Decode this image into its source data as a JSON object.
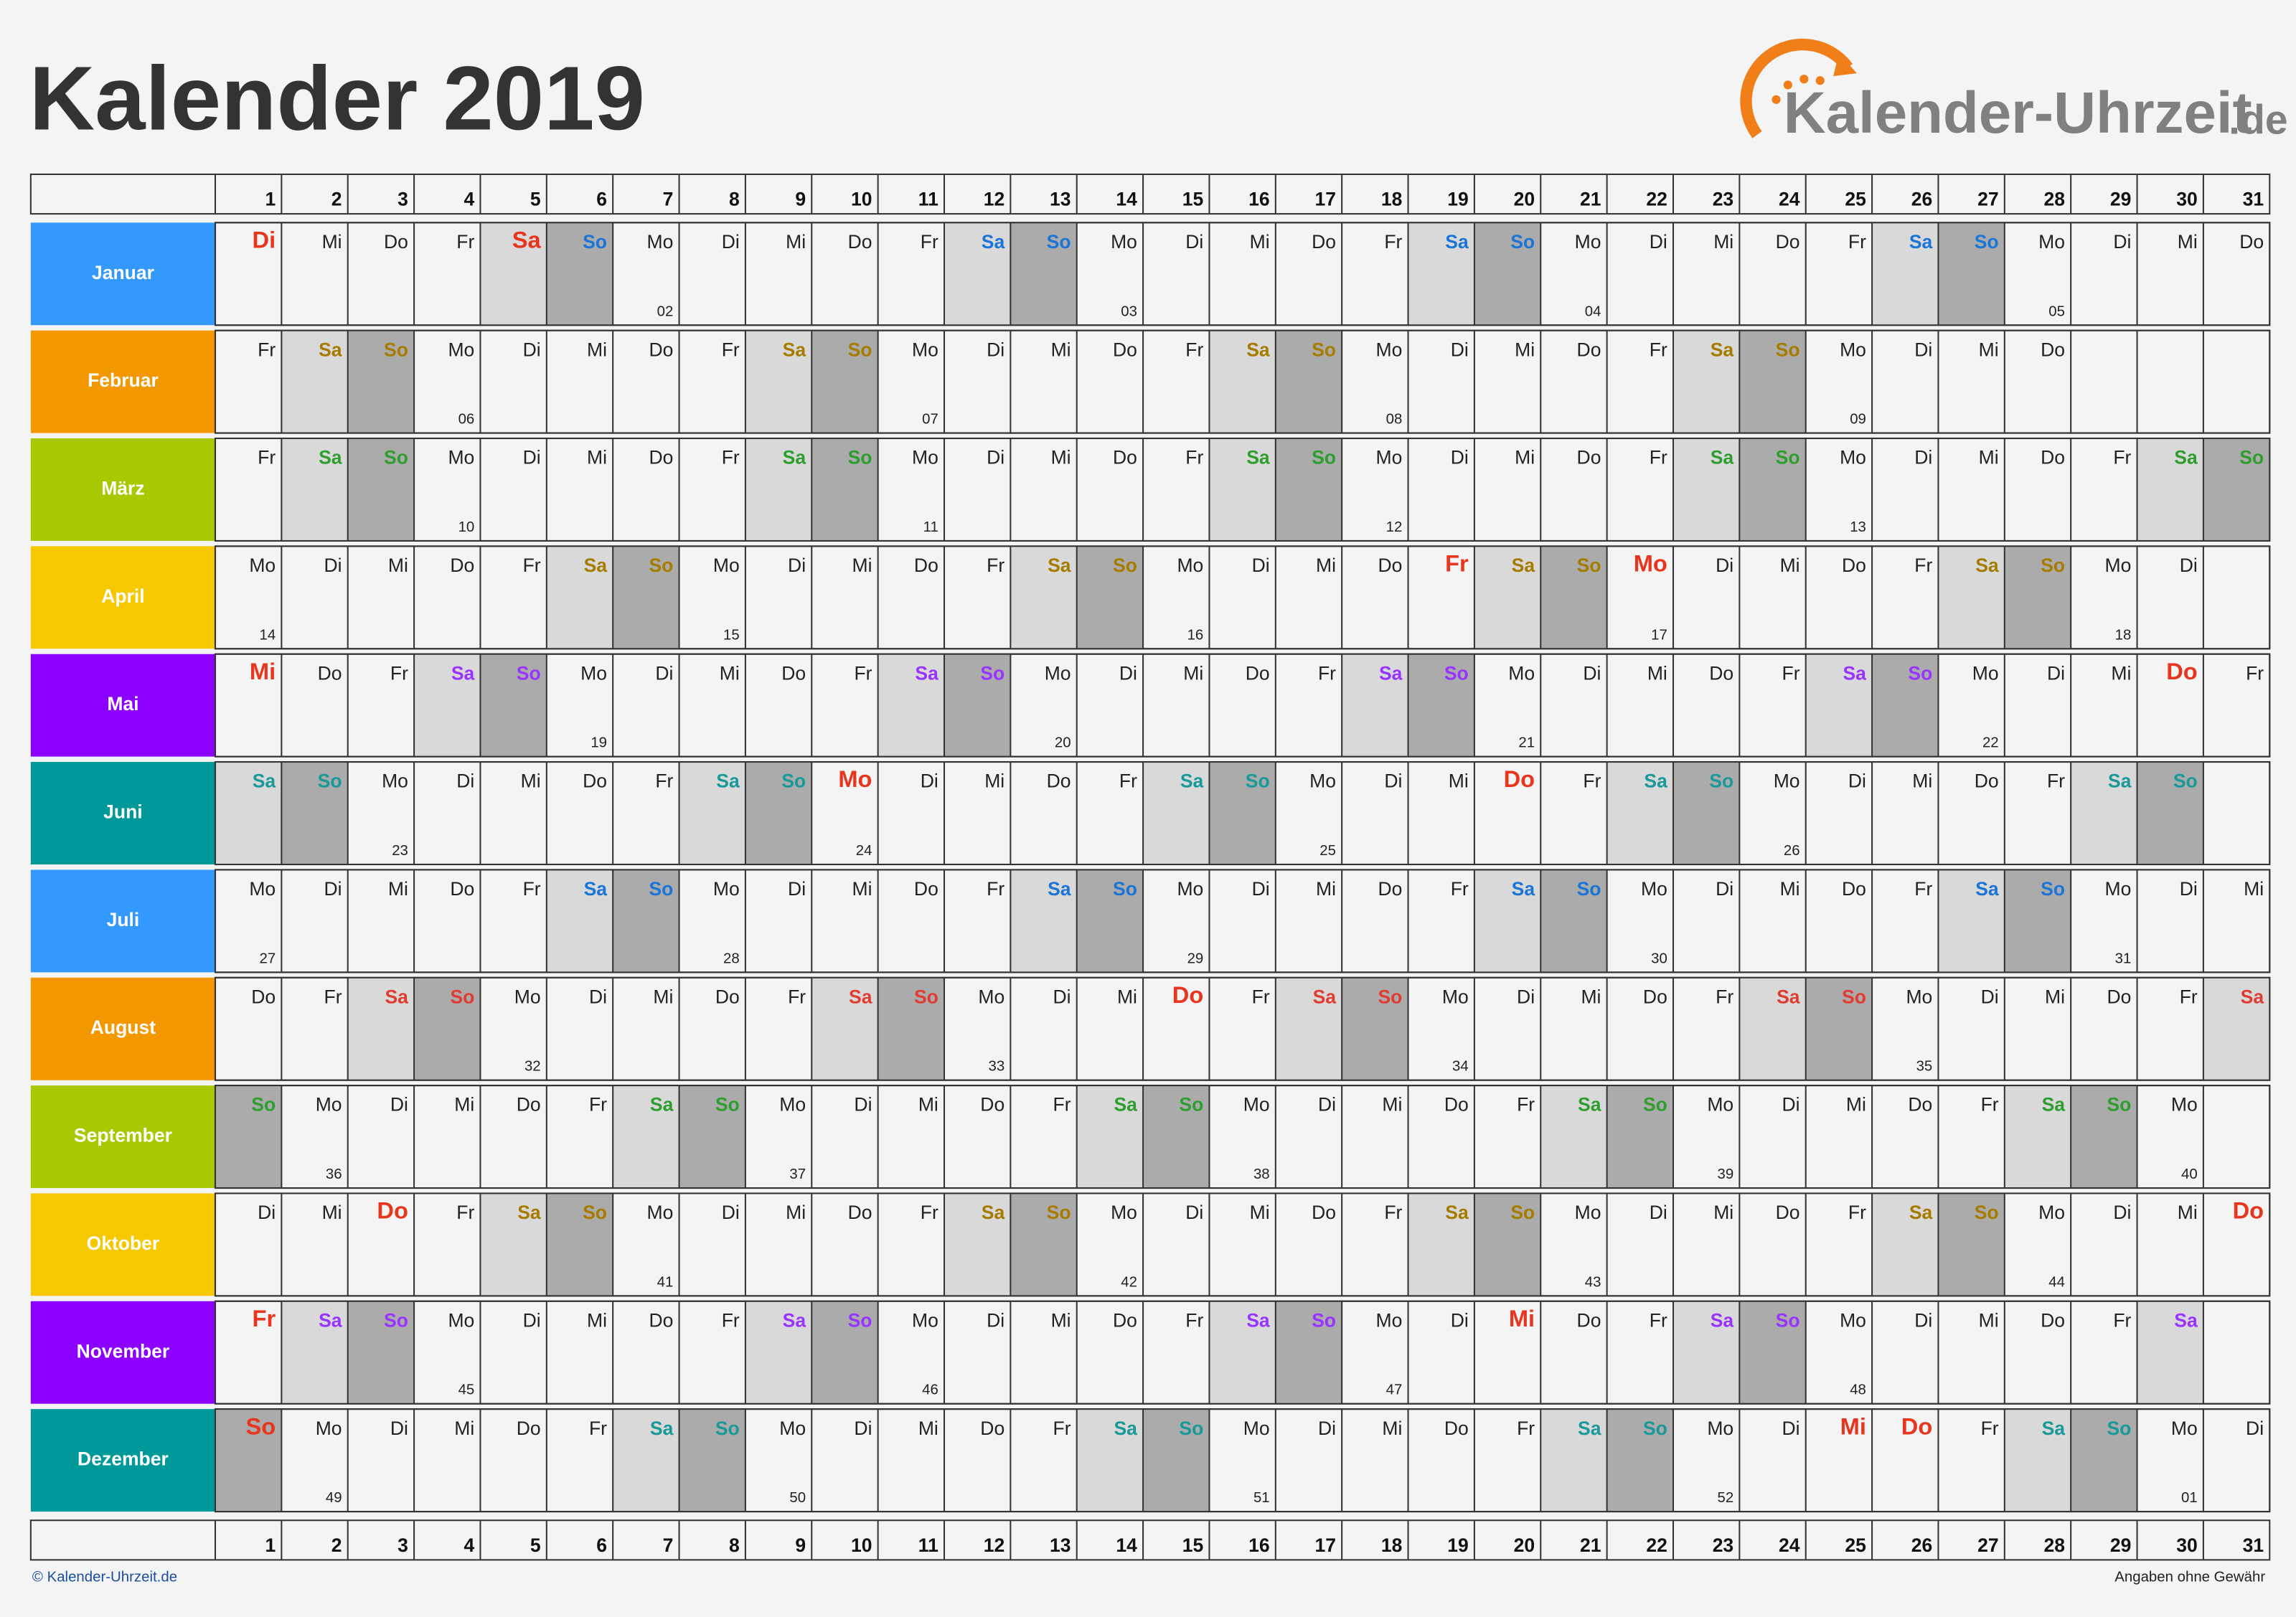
{
  "title": "Kalender 2019",
  "logo": {
    "name": "Kalender-Uhrzeit",
    "tld": ".de"
  },
  "footer": {
    "left": "© Kalender-Uhrzeit.de",
    "right": "Angaben ohne Gewähr"
  },
  "holiday_color": "#e8351e",
  "saturday_bg": "#d9d9d9",
  "sunday_bg": "#ababab",
  "days": [
    1,
    2,
    3,
    4,
    5,
    6,
    7,
    8,
    9,
    10,
    11,
    12,
    13,
    14,
    15,
    16,
    17,
    18,
    19,
    20,
    21,
    22,
    23,
    24,
    25,
    26,
    27,
    28,
    29,
    30,
    31
  ],
  "months": [
    {
      "name": "Januar",
      "color": "#3399ff",
      "weekend_color": "#1a75d6",
      "holidays": [
        1,
        5
      ],
      "days": [
        "Di",
        "Mi",
        "Do",
        "Fr",
        "Sa",
        "So",
        "Mo",
        "Di",
        "Mi",
        "Do",
        "Fr",
        "Sa",
        "So",
        "Mo",
        "Di",
        "Mi",
        "Do",
        "Fr",
        "Sa",
        "So",
        "Mo",
        "Di",
        "Mi",
        "Do",
        "Fr",
        "Sa",
        "So",
        "Mo",
        "Di",
        "Mi",
        "Do"
      ],
      "weeks": [
        "02",
        "03",
        "04",
        "05"
      ]
    },
    {
      "name": "Februar",
      "color": "#f39800",
      "weekend_color": "#a67c00",
      "holidays": [],
      "days": [
        "Fr",
        "Sa",
        "So",
        "Mo",
        "Di",
        "Mi",
        "Do",
        "Fr",
        "Sa",
        "So",
        "Mo",
        "Di",
        "Mi",
        "Do",
        "Fr",
        "Sa",
        "So",
        "Mo",
        "Di",
        "Mi",
        "Do",
        "Fr",
        "Sa",
        "So",
        "Mo",
        "Di",
        "Mi",
        "Do"
      ],
      "weeks": [
        "06",
        "07",
        "08",
        "09"
      ]
    },
    {
      "name": "März",
      "color": "#a8c800",
      "weekend_color": "#2e9e2e",
      "holidays": [],
      "days": [
        "Fr",
        "Sa",
        "So",
        "Mo",
        "Di",
        "Mi",
        "Do",
        "Fr",
        "Sa",
        "So",
        "Mo",
        "Di",
        "Mi",
        "Do",
        "Fr",
        "Sa",
        "So",
        "Mo",
        "Di",
        "Mi",
        "Do",
        "Fr",
        "Sa",
        "So",
        "Mo",
        "Di",
        "Mi",
        "Do",
        "Fr",
        "Sa",
        "So"
      ],
      "weeks": [
        "10",
        "11",
        "12",
        "13"
      ]
    },
    {
      "name": "April",
      "color": "#f5c800",
      "weekend_color": "#a67c00",
      "holidays": [
        19,
        22
      ],
      "days": [
        "Mo",
        "Di",
        "Mi",
        "Do",
        "Fr",
        "Sa",
        "So",
        "Mo",
        "Di",
        "Mi",
        "Do",
        "Fr",
        "Sa",
        "So",
        "Mo",
        "Di",
        "Mi",
        "Do",
        "Fr",
        "Sa",
        "So",
        "Mo",
        "Di",
        "Mi",
        "Do",
        "Fr",
        "Sa",
        "So",
        "Mo",
        "Di"
      ],
      "weeks": [
        "14",
        "15",
        "16",
        "17",
        "18"
      ]
    },
    {
      "name": "Mai",
      "color": "#8c00ff",
      "weekend_color": "#9933ff",
      "holidays": [
        1,
        30
      ],
      "days": [
        "Mi",
        "Do",
        "Fr",
        "Sa",
        "So",
        "Mo",
        "Di",
        "Mi",
        "Do",
        "Fr",
        "Sa",
        "So",
        "Mo",
        "Di",
        "Mi",
        "Do",
        "Fr",
        "Sa",
        "So",
        "Mo",
        "Di",
        "Mi",
        "Do",
        "Fr",
        "Sa",
        "So",
        "Mo",
        "Di",
        "Mi",
        "Do",
        "Fr"
      ],
      "weeks": [
        "19",
        "20",
        "21",
        "22"
      ]
    },
    {
      "name": "Juni",
      "color": "#009999",
      "weekend_color": "#1a9999",
      "holidays": [
        10,
        20
      ],
      "days": [
        "Sa",
        "So",
        "Mo",
        "Di",
        "Mi",
        "Do",
        "Fr",
        "Sa",
        "So",
        "Mo",
        "Di",
        "Mi",
        "Do",
        "Fr",
        "Sa",
        "So",
        "Mo",
        "Di",
        "Mi",
        "Do",
        "Fr",
        "Sa",
        "So",
        "Mo",
        "Di",
        "Mi",
        "Do",
        "Fr",
        "Sa",
        "So"
      ],
      "weeks": [
        "23",
        "24",
        "25",
        "26"
      ]
    },
    {
      "name": "Juli",
      "color": "#3399ff",
      "weekend_color": "#1a75d6",
      "holidays": [],
      "days": [
        "Mo",
        "Di",
        "Mi",
        "Do",
        "Fr",
        "Sa",
        "So",
        "Mo",
        "Di",
        "Mi",
        "Do",
        "Fr",
        "Sa",
        "So",
        "Mo",
        "Di",
        "Mi",
        "Do",
        "Fr",
        "Sa",
        "So",
        "Mo",
        "Di",
        "Mi",
        "Do",
        "Fr",
        "Sa",
        "So",
        "Mo",
        "Di",
        "Mi"
      ],
      "weeks": [
        "27",
        "28",
        "29",
        "30",
        "31"
      ]
    },
    {
      "name": "August",
      "color": "#f39800",
      "weekend_color": "#e03c31",
      "holidays": [
        15
      ],
      "days": [
        "Do",
        "Fr",
        "Sa",
        "So",
        "Mo",
        "Di",
        "Mi",
        "Do",
        "Fr",
        "Sa",
        "So",
        "Mo",
        "Di",
        "Mi",
        "Do",
        "Fr",
        "Sa",
        "So",
        "Mo",
        "Di",
        "Mi",
        "Do",
        "Fr",
        "Sa",
        "So",
        "Mo",
        "Di",
        "Mi",
        "Do",
        "Fr",
        "Sa"
      ],
      "weeks": [
        "32",
        "33",
        "34",
        "35"
      ]
    },
    {
      "name": "September",
      "color": "#a8c800",
      "weekend_color": "#2e9e2e",
      "holidays": [],
      "days": [
        "So",
        "Mo",
        "Di",
        "Mi",
        "Do",
        "Fr",
        "Sa",
        "So",
        "Mo",
        "Di",
        "Mi",
        "Do",
        "Fr",
        "Sa",
        "So",
        "Mo",
        "Di",
        "Mi",
        "Do",
        "Fr",
        "Sa",
        "So",
        "Mo",
        "Di",
        "Mi",
        "Do",
        "Fr",
        "Sa",
        "So",
        "Mo"
      ],
      "weeks": [
        "36",
        "37",
        "38",
        "39",
        "40"
      ]
    },
    {
      "name": "Oktober",
      "color": "#f5c800",
      "weekend_color": "#a67c00",
      "holidays": [
        3,
        31
      ],
      "days": [
        "Di",
        "Mi",
        "Do",
        "Fr",
        "Sa",
        "So",
        "Mo",
        "Di",
        "Mi",
        "Do",
        "Fr",
        "Sa",
        "So",
        "Mo",
        "Di",
        "Mi",
        "Do",
        "Fr",
        "Sa",
        "So",
        "Mo",
        "Di",
        "Mi",
        "Do",
        "Fr",
        "Sa",
        "So",
        "Mo",
        "Di",
        "Mi",
        "Do"
      ],
      "weeks": [
        "41",
        "42",
        "43",
        "44"
      ]
    },
    {
      "name": "November",
      "color": "#8c00ff",
      "weekend_color": "#9933ff",
      "holidays": [
        1,
        20
      ],
      "days": [
        "Fr",
        "Sa",
        "So",
        "Mo",
        "Di",
        "Mi",
        "Do",
        "Fr",
        "Sa",
        "So",
        "Mo",
        "Di",
        "Mi",
        "Do",
        "Fr",
        "Sa",
        "So",
        "Mo",
        "Di",
        "Mi",
        "Do",
        "Fr",
        "Sa",
        "So",
        "Mo",
        "Di",
        "Mi",
        "Do",
        "Fr",
        "Sa"
      ],
      "weeks": [
        "45",
        "46",
        "47",
        "48"
      ]
    },
    {
      "name": "Dezember",
      "color": "#009999",
      "weekend_color": "#1a9999",
      "holidays": [
        1,
        25,
        26
      ],
      "days": [
        "So",
        "Mo",
        "Di",
        "Mi",
        "Do",
        "Fr",
        "Sa",
        "So",
        "Mo",
        "Di",
        "Mi",
        "Do",
        "Fr",
        "Sa",
        "So",
        "Mo",
        "Di",
        "Mi",
        "Do",
        "Fr",
        "Sa",
        "So",
        "Mo",
        "Di",
        "Mi",
        "Do",
        "Fr",
        "Sa",
        "So",
        "Mo",
        "Di"
      ],
      "weeks": [
        "49",
        "50",
        "51",
        "52",
        "01"
      ]
    }
  ]
}
